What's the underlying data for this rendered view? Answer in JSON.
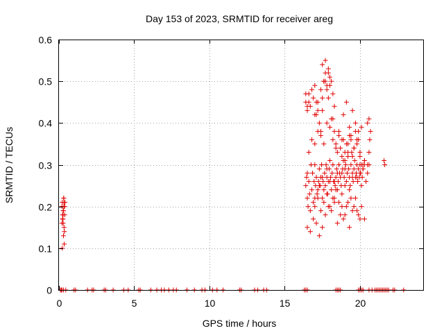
{
  "chart_data": {
    "type": "scatter",
    "title": "Day 153 of 2023, SRMTID for receiver areg",
    "xlabel": "GPS time / hours",
    "ylabel": "SRMTID / TECUs",
    "xlim": [
      0,
      24.2
    ],
    "ylim": [
      0,
      0.6
    ],
    "xticks": [
      0,
      5,
      10,
      15,
      20
    ],
    "yticks": [
      0,
      0.1,
      0.2,
      0.3,
      0.4,
      0.5,
      0.6
    ],
    "ytick_labels": [
      "0",
      "0.1",
      "0.2",
      "0.3",
      "0.4",
      "0.5",
      "0.6"
    ],
    "grid": true,
    "marker": "+",
    "color": "#e00000",
    "series": [
      {
        "name": "SRMTID",
        "x": [
          0.2,
          0.22,
          0.24,
          0.26,
          0.28,
          0.3,
          0.32,
          0.34,
          0.36,
          0.38,
          0.2,
          0.25,
          0.3,
          0.35,
          0.22,
          0.28,
          0.33,
          0.37,
          0.24,
          0.31,
          0.36,
          0.4,
          0.27,
          0.33,
          16.4,
          16.45,
          16.5,
          16.55,
          16.6,
          16.65,
          16.7,
          16.75,
          16.8,
          16.85,
          16.9,
          16.95,
          17.0,
          17.05,
          17.1,
          17.15,
          17.2,
          17.25,
          17.3,
          17.35,
          17.4,
          17.45,
          17.5,
          17.55,
          17.6,
          17.65,
          17.7,
          17.75,
          17.8,
          17.85,
          17.9,
          17.95,
          18.0,
          18.05,
          18.1,
          18.15,
          18.2,
          18.25,
          18.3,
          18.35,
          18.4,
          18.45,
          18.5,
          18.55,
          18.6,
          18.65,
          18.7,
          18.75,
          18.8,
          18.85,
          18.9,
          18.95,
          19.0,
          19.05,
          19.1,
          19.15,
          19.2,
          19.25,
          19.3,
          19.35,
          19.4,
          19.45,
          19.5,
          19.55,
          19.6,
          19.65,
          19.7,
          19.75,
          19.8,
          19.85,
          19.9,
          19.95,
          20.0,
          20.05,
          20.1,
          20.15,
          20.2,
          20.3,
          20.4,
          20.5,
          20.6,
          16.4,
          16.5,
          16.6,
          16.7,
          16.8,
          16.9,
          17.0,
          17.1,
          17.2,
          17.3,
          17.4,
          17.5,
          17.6,
          17.7,
          17.8,
          17.9,
          18.0,
          18.1,
          18.2,
          18.3,
          18.4,
          18.5,
          18.6,
          18.7,
          18.8,
          18.9,
          19.0,
          19.1,
          19.2,
          19.3,
          19.4,
          19.5,
          19.6,
          19.7,
          19.8,
          19.9,
          20.0,
          20.1,
          20.2,
          20.3,
          20.5,
          20.6,
          16.5,
          16.7,
          16.9,
          17.1,
          17.3,
          17.5,
          17.7,
          17.9,
          18.1,
          18.3,
          18.5,
          18.7,
          18.9,
          19.1,
          19.3,
          19.5,
          19.7,
          19.9,
          20.1,
          20.3,
          16.6,
          16.8,
          17.0,
          17.2,
          17.4,
          17.6,
          17.8,
          18.0,
          18.2,
          18.4,
          18.6,
          18.8,
          19.0,
          19.2,
          19.4,
          19.6,
          19.8,
          20.0,
          20.2,
          17.0,
          17.2,
          17.4,
          17.6,
          17.8,
          18.0,
          18.2,
          18.4,
          18.6,
          18.8,
          19.0,
          19.2,
          19.4,
          19.6,
          19.8,
          20.0,
          17.5,
          17.7,
          17.9,
          18.1,
          18.3,
          18.9,
          19.1,
          19.3,
          19.5,
          19.7,
          19.9,
          20.1,
          16.5,
          17.0,
          17.5,
          18.0,
          18.5,
          19.0,
          19.5,
          20.0,
          20.5,
          17.3,
          17.8,
          18.3,
          18.8,
          19.3,
          19.8,
          20.3,
          17.6,
          17.8,
          17.9,
          18.0,
          18.2,
          17.4,
          17.5,
          17.7,
          16.6,
          16.4,
          16.5,
          17.1,
          17.2,
          17.0,
          20.6,
          20.7,
          20.65,
          21.6,
          21.65,
          0.1,
          0.15,
          0.2,
          0.3,
          0.45,
          1.0,
          1.1,
          1.9,
          2.2,
          2.3,
          3.0,
          3.1,
          3.6,
          4.3,
          4.6,
          5.3,
          5.4,
          6.1,
          6.5,
          6.8,
          7.0,
          7.3,
          7.6,
          7.8,
          8.5,
          9.0,
          9.5,
          9.7,
          10.2,
          10.5,
          10.9,
          12.0,
          12.1,
          13.0,
          13.2,
          13.6,
          13.8,
          16.3,
          16.4,
          16.5,
          18.4,
          18.5,
          18.6,
          18.7,
          19.9,
          20.0,
          20.1,
          20.2,
          20.6,
          20.8,
          21.0,
          21.1,
          21.2,
          21.3,
          21.4,
          21.5,
          21.6,
          21.7,
          21.8,
          21.9,
          22.2,
          22.3,
          22.9
        ],
        "y": [
          0.2,
          0.21,
          0.18,
          0.17,
          0.16,
          0.19,
          0.22,
          0.15,
          0.2,
          0.18,
          0.16,
          0.17,
          0.13,
          0.11,
          0.1,
          0.19,
          0.21,
          0.2,
          0.17,
          0.22,
          0.14,
          0.21,
          0.18,
          0.2,
          0.25,
          0.27,
          0.22,
          0.2,
          0.26,
          0.23,
          0.19,
          0.3,
          0.24,
          0.28,
          0.21,
          0.26,
          0.22,
          0.25,
          0.27,
          0.23,
          0.24,
          0.26,
          0.29,
          0.25,
          0.27,
          0.3,
          0.22,
          0.26,
          0.24,
          0.28,
          0.25,
          0.3,
          0.27,
          0.23,
          0.26,
          0.29,
          0.31,
          0.27,
          0.24,
          0.28,
          0.3,
          0.26,
          0.22,
          0.25,
          0.27,
          0.29,
          0.24,
          0.26,
          0.3,
          0.28,
          0.27,
          0.25,
          0.23,
          0.29,
          0.31,
          0.27,
          0.25,
          0.3,
          0.26,
          0.28,
          0.32,
          0.29,
          0.27,
          0.25,
          0.3,
          0.33,
          0.28,
          0.26,
          0.29,
          0.31,
          0.27,
          0.28,
          0.3,
          0.26,
          0.29,
          0.27,
          0.3,
          0.28,
          0.25,
          0.27,
          0.29,
          0.3,
          0.26,
          0.28,
          0.3,
          0.45,
          0.43,
          0.47,
          0.44,
          0.48,
          0.46,
          0.49,
          0.42,
          0.45,
          0.4,
          0.38,
          0.43,
          0.5,
          0.52,
          0.48,
          0.46,
          0.49,
          0.41,
          0.36,
          0.38,
          0.35,
          0.33,
          0.37,
          0.34,
          0.32,
          0.36,
          0.31,
          0.35,
          0.33,
          0.37,
          0.36,
          0.32,
          0.34,
          0.38,
          0.35,
          0.36,
          0.32,
          0.3,
          0.29,
          0.31,
          0.4,
          0.41,
          0.15,
          0.14,
          0.17,
          0.16,
          0.13,
          0.15,
          0.18,
          0.2,
          0.19,
          0.21,
          0.16,
          0.18,
          0.17,
          0.2,
          0.15,
          0.19,
          0.22,
          0.18,
          0.2,
          0.17,
          0.33,
          0.36,
          0.35,
          0.38,
          0.37,
          0.35,
          0.4,
          0.39,
          0.41,
          0.34,
          0.38,
          0.36,
          0.33,
          0.35,
          0.37,
          0.34,
          0.36,
          0.33,
          0.3,
          0.2,
          0.22,
          0.19,
          0.21,
          0.23,
          0.2,
          0.22,
          0.24,
          0.21,
          0.2,
          0.18,
          0.21,
          0.22,
          0.2,
          0.19,
          0.17,
          0.54,
          0.55,
          0.53,
          0.5,
          0.44,
          0.42,
          0.45,
          0.39,
          0.43,
          0.4,
          0.38,
          0.39,
          0.28,
          0.3,
          0.27,
          0.26,
          0.28,
          0.29,
          0.27,
          0.28,
          0.3,
          0.25,
          0.29,
          0.26,
          0.28,
          0.24,
          0.27,
          0.31,
          0.5,
          0.49,
          0.52,
          0.51,
          0.47,
          0.48,
          0.46,
          0.5,
          0.45,
          0.47,
          0.44,
          0.45,
          0.43,
          0.42,
          0.33,
          0.38,
          0.36,
          0.31,
          0.3,
          0,
          0,
          0,
          0,
          0,
          0,
          0,
          0,
          0,
          0,
          0,
          0,
          0,
          0,
          0,
          0,
          0,
          0,
          0,
          0,
          0,
          0,
          0,
          0,
          0,
          0,
          0,
          0,
          0,
          0,
          0,
          0,
          0,
          0,
          0,
          0,
          0,
          0,
          0,
          0,
          0,
          0,
          0,
          0,
          0,
          0,
          0,
          0,
          0,
          0,
          0,
          0,
          0,
          0,
          0,
          0,
          0,
          0,
          0,
          0,
          0,
          0,
          0
        ]
      }
    ]
  }
}
